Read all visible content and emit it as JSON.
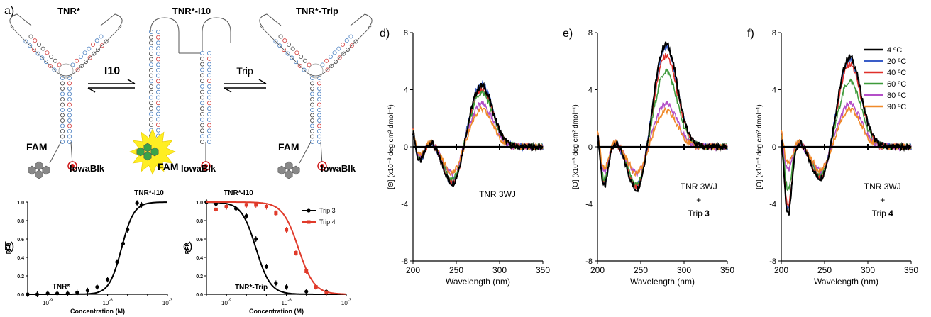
{
  "panels": {
    "a": {
      "label": "a)",
      "structures": [
        "TNR*",
        "TNR*-I10",
        "TNR*-Trip"
      ],
      "arrow_left": "I10",
      "arrow_right": "Trip",
      "fam": "FAM",
      "quencher": "IowaBlk"
    },
    "b": {
      "label": "b)"
    },
    "c": {
      "label": "c)"
    },
    "d": {
      "label": "d)"
    },
    "e": {
      "label": "e)"
    },
    "f": {
      "label": "f)"
    }
  },
  "colors": {
    "ink": "#000000",
    "dna_black": "#444444",
    "dna_blue": "#4a7fc1",
    "dna_red": "#d23a3a",
    "quencher": "#d01818",
    "fam_glow": "#ffee22",
    "fam_green": "#3aa34a",
    "fam_grey": "#888888"
  },
  "chart_data": [
    {
      "panel": "b",
      "type": "scatter",
      "xlabel": "Concentration (M)",
      "ylabel": "RFU",
      "x_scale": "log",
      "xlim": [
        1e-10,
        0.001
      ],
      "ylim": [
        0,
        1.0
      ],
      "x_ticks": [
        {
          "value": 1e-09,
          "label": "10",
          "exp": "-9"
        },
        {
          "value": 1e-06,
          "label": "10",
          "exp": "-6"
        },
        {
          "value": 0.001,
          "label": "10",
          "exp": "-3"
        }
      ],
      "y_ticks": [
        "0.0",
        "0.2",
        "0.4",
        "0.6",
        "0.8",
        "1.0"
      ],
      "annotations": [
        "TNR*-I10",
        "TNR*"
      ],
      "series": [
        {
          "color": "#000000",
          "x": [
            1e-10,
            3e-10,
            1e-09,
            3e-09,
            1e-08,
            3e-08,
            1e-07,
            3e-07,
            1e-06,
            3e-06,
            6e-06,
            1e-05,
            3e-05,
            5e-05
          ],
          "y": [
            0.0,
            0.0,
            0.01,
            0.01,
            0.01,
            0.02,
            0.04,
            0.08,
            0.16,
            0.35,
            0.55,
            0.7,
            0.99,
            0.97
          ],
          "fit_ec50": 5e-06,
          "fit_hill": 1.4
        }
      ]
    },
    {
      "panel": "c",
      "type": "scatter",
      "xlabel": "Concentration (M)",
      "ylabel": "RFU",
      "x_scale": "log",
      "xlim": [
        1e-10,
        0.001
      ],
      "ylim": [
        0,
        1.0
      ],
      "x_ticks": [
        {
          "value": 1e-09,
          "label": "10",
          "exp": "-9"
        },
        {
          "value": 1e-06,
          "label": "10",
          "exp": "-6"
        },
        {
          "value": 0.001,
          "label": "10",
          "exp": "-3"
        }
      ],
      "y_ticks": [
        "0.0",
        "0.2",
        "0.4",
        "0.6",
        "0.8",
        "1.0"
      ],
      "annotations": [
        "TNR*-I10",
        "TNR*-Trip"
      ],
      "series": [
        {
          "name": "Trip 3",
          "color": "#000000",
          "x": [
            1e-10,
            3e-10,
            1e-09,
            3e-09,
            1e-08,
            3e-08,
            1e-07,
            3e-07,
            1e-06,
            1e-05,
            0.0001
          ],
          "y": [
            1.0,
            0.98,
            0.95,
            0.93,
            0.85,
            0.6,
            0.3,
            0.12,
            0.08,
            0.03,
            0.03
          ],
          "fit_ec50": 3e-08,
          "fit_hill": 1.2
        },
        {
          "name": "Trip 4",
          "color": "#e03a2a",
          "x": [
            3e-10,
            1e-09,
            1e-08,
            3e-08,
            1e-07,
            3e-07,
            1e-06,
            3e-06,
            1e-05,
            3e-05,
            0.0001
          ],
          "y": [
            0.92,
            0.95,
            0.97,
            0.97,
            0.95,
            0.88,
            0.7,
            0.45,
            0.25,
            0.08,
            0.02
          ],
          "fit_ec50": 4e-06,
          "fit_hill": 1.1
        }
      ]
    },
    {
      "panel": "d",
      "type": "line",
      "xlabel": "Wavelength (nm)",
      "ylabel": "[Θ] (x10⁻³ deg cm² dmol⁻¹)",
      "xlim": [
        200,
        350
      ],
      "ylim": [
        -8,
        8
      ],
      "x_ticks": [
        "200",
        "250",
        "300",
        "350"
      ],
      "y_ticks": [
        "-8",
        "-4",
        "0",
        "4",
        "8"
      ],
      "annotation": [
        "TNR 3WJ"
      ],
      "series": [
        {
          "name": "4 ºC",
          "color": "#000000",
          "amp": 4.3,
          "neg": -2.7,
          "dip": -1.0
        },
        {
          "name": "20 ºC",
          "color": "#3a5dc8",
          "amp": 4.4,
          "neg": -2.6,
          "dip": -0.9
        },
        {
          "name": "40 ºC",
          "color": "#e0302a",
          "amp": 4.0,
          "neg": -2.6,
          "dip": -0.9
        },
        {
          "name": "60 ºC",
          "color": "#3d9a3a",
          "amp": 3.8,
          "neg": -2.4,
          "dip": -0.8
        },
        {
          "name": "80 ºC",
          "color": "#b44fc8",
          "amp": 3.0,
          "neg": -2.0,
          "dip": -0.7
        },
        {
          "name": "90 ºC",
          "color": "#f08a2a",
          "amp": 2.6,
          "neg": -1.9,
          "dip": -0.6
        }
      ]
    },
    {
      "panel": "e",
      "type": "line",
      "xlabel": "Wavelength (nm)",
      "ylabel": "[Θ] (x10⁻³ deg cm² dmol⁻¹)",
      "xlim": [
        200,
        350
      ],
      "ylim": [
        -8,
        8
      ],
      "x_ticks": [
        "200",
        "250",
        "300",
        "350"
      ],
      "y_ticks": [
        "-8",
        "-4",
        "0",
        "4",
        "8"
      ],
      "annotation": [
        "TNR 3WJ",
        "+",
        "Trip 3"
      ],
      "series": [
        {
          "name": "4 ºC",
          "color": "#000000",
          "amp": 7.2,
          "neg": -3.2,
          "dip": -2.8
        },
        {
          "name": "20 ºC",
          "color": "#3a5dc8",
          "amp": 7.0,
          "neg": -3.0,
          "dip": -2.6
        },
        {
          "name": "40 ºC",
          "color": "#e0302a",
          "amp": 6.4,
          "neg": -3.0,
          "dip": -2.5
        },
        {
          "name": "60 ºC",
          "color": "#3d9a3a",
          "amp": 5.3,
          "neg": -2.8,
          "dip": -2.3
        },
        {
          "name": "80 ºC",
          "color": "#b44fc8",
          "amp": 3.0,
          "neg": -2.0,
          "dip": -1.8
        },
        {
          "name": "90 ºC",
          "color": "#f08a2a",
          "amp": 2.5,
          "neg": -1.9,
          "dip": -1.6
        }
      ]
    },
    {
      "panel": "f",
      "type": "line",
      "xlabel": "Wavelength (nm)",
      "ylabel": "[Θ] (x10⁻³ deg cm² dmol⁻¹)",
      "xlim": [
        200,
        350
      ],
      "ylim": [
        -8,
        8
      ],
      "x_ticks": [
        "200",
        "250",
        "300",
        "350"
      ],
      "y_ticks": [
        "-8",
        "-4",
        "0",
        "4",
        "8"
      ],
      "annotation": [
        "TNR 3WJ",
        "+",
        "Trip 4"
      ],
      "legend": [
        "4 ºC",
        "20 ºC",
        "40 ºC",
        "60 ºC",
        "80 ºC",
        "90 ºC"
      ],
      "series": [
        {
          "name": "4 ºC",
          "color": "#000000",
          "amp": 6.3,
          "neg": -2.4,
          "dip": -4.8
        },
        {
          "name": "20 ºC",
          "color": "#3a5dc8",
          "amp": 6.1,
          "neg": -2.3,
          "dip": -4.4
        },
        {
          "name": "40 ºC",
          "color": "#e0302a",
          "amp": 5.8,
          "neg": -2.3,
          "dip": -4.2
        },
        {
          "name": "60 ºC",
          "color": "#3d9a3a",
          "amp": 4.6,
          "neg": -2.1,
          "dip": -3.0
        },
        {
          "name": "80 ºC",
          "color": "#b44fc8",
          "amp": 3.0,
          "neg": -1.8,
          "dip": -1.6
        },
        {
          "name": "90 ºC",
          "color": "#f08a2a",
          "amp": 2.6,
          "neg": -1.7,
          "dip": -1.2
        }
      ]
    }
  ]
}
